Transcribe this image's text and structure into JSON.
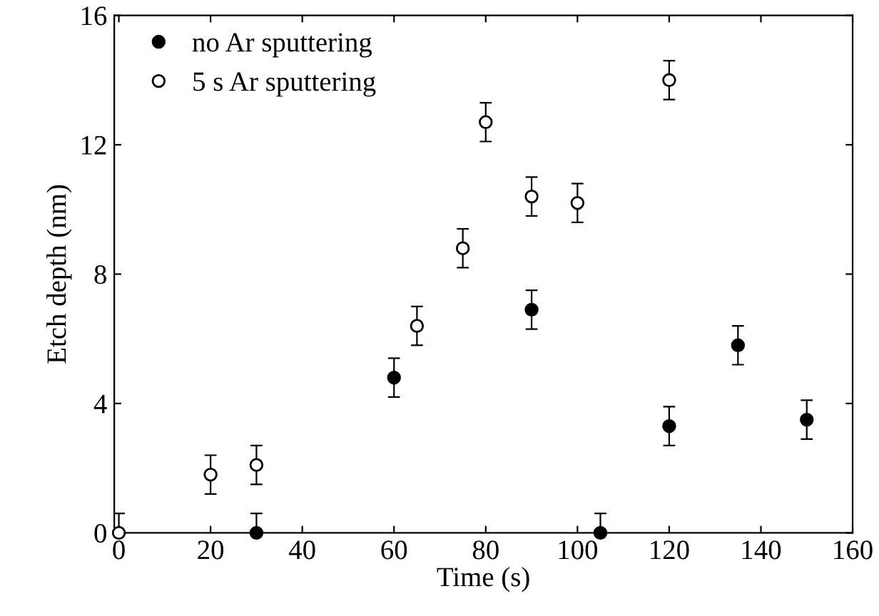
{
  "chart_data": {
    "type": "scatter",
    "xlabel": "Time (s)",
    "ylabel": "Etch depth (nm)",
    "xlim": [
      -1,
      160
    ],
    "ylim": [
      0,
      16
    ],
    "xticks": [
      0,
      20,
      40,
      60,
      80,
      100,
      120,
      140,
      160
    ],
    "yticks": [
      0,
      4,
      8,
      12,
      16
    ],
    "legend": "top left",
    "grid": false,
    "marker": "circle",
    "series": [
      {
        "name": "no Ar sputtering",
        "color": "#000000",
        "x": [
          30,
          60,
          90,
          105,
          120,
          135,
          150
        ],
        "values": [
          0,
          4.8,
          6.9,
          0,
          3.3,
          5.8,
          3.5
        ],
        "errors": [
          0.6,
          0.6,
          0.6,
          0.6,
          0.6,
          0.6,
          0.6
        ]
      },
      {
        "name": "5 s Ar sputtering",
        "color": "#000000",
        "x": [
          0,
          20,
          30,
          65,
          75,
          80,
          90,
          100,
          120
        ],
        "values": [
          0,
          1.8,
          2.1,
          6.4,
          8.8,
          12.7,
          10.4,
          10.2,
          14.0
        ],
        "errors": [
          0.6,
          0.6,
          0.6,
          0.6,
          0.6,
          0.6,
          0.6,
          0.6,
          0.6
        ]
      }
    ]
  }
}
